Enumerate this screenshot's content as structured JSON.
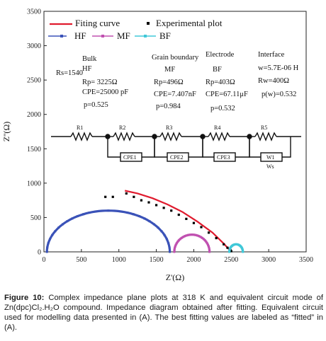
{
  "chart_data": {
    "type": "scatter",
    "xlabel": "Z'(Ω)",
    "ylabel": "Z''(Ω)",
    "xlim": [
      0,
      3500
    ],
    "ylim": [
      0,
      3500
    ],
    "x_ticks": [
      "0",
      "500",
      "1000",
      "1500",
      "2000",
      "2500",
      "3000",
      "3500"
    ],
    "y_ticks": [
      "0",
      "500",
      "1000",
      "1500",
      "2000",
      "2500",
      "3000",
      "3500"
    ],
    "legend": {
      "placement": "top-left",
      "entries": [
        "Fiting curve",
        "Experimental plot",
        "HF",
        "MF",
        "BF"
      ]
    },
    "series": [
      {
        "name": "Fiting curve",
        "color": "#e01b2e",
        "style": "line",
        "x": [
          1080,
          1250,
          1450,
          1650,
          1850,
          2050,
          2250,
          2400,
          2500
        ],
        "y": [
          890,
          850,
          780,
          690,
          580,
          440,
          280,
          120,
          0
        ]
      },
      {
        "name": "Experimental plot",
        "color": "#000000",
        "style": "dots",
        "x": [
          820,
          920,
          1100,
          1200,
          1300,
          1400,
          1500,
          1600,
          1700,
          1800,
          1900,
          2000,
          2100,
          2200,
          2300,
          2400,
          2450,
          2500
        ],
        "y": [
          800,
          800,
          850,
          800,
          750,
          720,
          680,
          640,
          600,
          540,
          480,
          420,
          360,
          280,
          200,
          110,
          60,
          10
        ]
      },
      {
        "name": "HF",
        "color": "#3a52b8",
        "style": "semicircle",
        "center": 860,
        "radius": 820,
        "height": 600
      },
      {
        "name": "MF",
        "color": "#c050b0",
        "style": "semicircle",
        "center": 1975,
        "radius": 235,
        "height": 250
      },
      {
        "name": "BF",
        "color": "#40c8d8",
        "style": "semicircle",
        "center": 2565,
        "radius": 90,
        "height": 110
      }
    ],
    "annotations": {
      "rs": "Rs=1540",
      "col1": [
        "Bulk",
        "HF",
        "Rp= 3225Ω",
        "CPE=25000 pF",
        "p=0.525"
      ],
      "col2": [
        "Grain boundary",
        "MF",
        "Rp=496Ω",
        "CPE=7.407nF",
        "p=0.984"
      ],
      "col3": [
        "Electrode",
        "BF",
        "Rp=403Ω",
        "CPE=67.11μF",
        "p=0.532"
      ],
      "col4": [
        "Interface",
        "w=5.7E-06 H",
        "Rw=400Ω",
        "p(w)=0.532"
      ]
    },
    "circuit": {
      "elements": [
        "R1",
        "R2",
        "R3",
        "R4",
        "R5"
      ],
      "parallel": [
        "CPE1",
        "CPE2",
        "CPE3",
        "W1"
      ],
      "ws_label": "Ws"
    }
  },
  "caption": {
    "lead": "Figure 10:",
    "text": " Complex impedance plane plots at 318 K and equivalent circuit mode of Zn(dpc)Cl₂.H₂O compound. Impedance diagram obtained after fitting. Equivalent circuit used for modelling data presented in (A). The best fitting values are labeled as “fitted” in (A)."
  }
}
